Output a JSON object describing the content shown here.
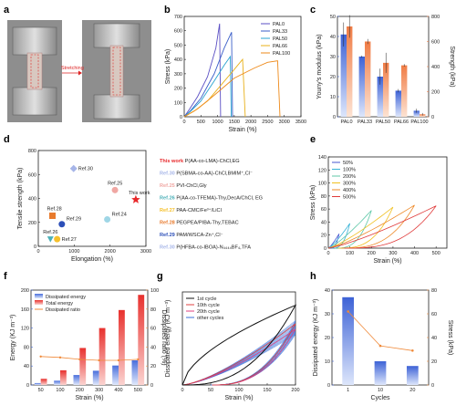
{
  "panel_labels": [
    "a",
    "b",
    "c",
    "d",
    "e",
    "f",
    "g",
    "h"
  ],
  "panel_a": {
    "arrow_label": "Stretching"
  },
  "chart_data": [
    {
      "panel": "b",
      "type": "line",
      "xlabel": "Strain (%)",
      "ylabel": "Stress (kPa)",
      "xlim": [
        0,
        3500
      ],
      "ylim": [
        0,
        700
      ],
      "xticks": [
        "0",
        "500",
        "1000",
        "1500",
        "2000",
        "2500",
        "3000",
        "3500"
      ],
      "yticks": [
        "0",
        "100",
        "200",
        "300",
        "400",
        "500",
        "600",
        "700"
      ],
      "legend_position": "top-right",
      "series": [
        {
          "name": "PAL0",
          "color": "#5b4fc4",
          "points": [
            [
              0,
              0
            ],
            [
              150,
              50
            ],
            [
              400,
              140
            ],
            [
              700,
              280
            ],
            [
              950,
              480
            ],
            [
              1060,
              650
            ],
            [
              1090,
              0
            ]
          ]
        },
        {
          "name": "PAL33",
          "color": "#3a5ec8",
          "points": [
            [
              0,
              0
            ],
            [
              200,
              45
            ],
            [
              500,
              130
            ],
            [
              900,
              300
            ],
            [
              1200,
              480
            ],
            [
              1420,
              590
            ],
            [
              1450,
              0
            ]
          ]
        },
        {
          "name": "PAL50",
          "color": "#27a3d0",
          "points": [
            [
              0,
              0
            ],
            [
              200,
              40
            ],
            [
              500,
              110
            ],
            [
              900,
              250
            ],
            [
              1200,
              360
            ],
            [
              1380,
              420
            ],
            [
              1410,
              0
            ]
          ]
        },
        {
          "name": "PAL66",
          "color": "#e8b01a",
          "points": [
            [
              0,
              0
            ],
            [
              300,
              40
            ],
            [
              700,
              110
            ],
            [
              1100,
              220
            ],
            [
              1500,
              330
            ],
            [
              1750,
              400
            ],
            [
              1830,
              0
            ]
          ]
        },
        {
          "name": "PAL100",
          "color": "#ee8a1a",
          "points": [
            [
              0,
              0
            ],
            [
              400,
              55
            ],
            [
              900,
              150
            ],
            [
              1500,
              270
            ],
            [
              2100,
              340
            ],
            [
              2500,
              380
            ],
            [
              2800,
              390
            ],
            [
              2870,
              0
            ]
          ]
        }
      ]
    },
    {
      "panel": "c",
      "type": "bar",
      "categories": [
        "PAL0",
        "PAL33",
        "PAL50",
        "PAL66",
        "PAL100"
      ],
      "ylabel_left": "Youny's modulus (kPa)",
      "ylim_left": [
        0,
        50
      ],
      "ylabel_right": "Strength (kPa)",
      "ylim_right": [
        0,
        800
      ],
      "yticks_left": [
        "0",
        "10",
        "20",
        "30",
        "40",
        "50"
      ],
      "yticks_right": [
        "0",
        "200",
        "400",
        "600",
        "800"
      ],
      "series": [
        {
          "name": "Young's modulus",
          "axis": "left",
          "color": "#3d62d6",
          "values": [
            41,
            30,
            20,
            13,
            3
          ],
          "errors": [
            6,
            0.5,
            4,
            0.8,
            1
          ]
        },
        {
          "name": "Strength",
          "axis": "right",
          "color": "#f07c45",
          "values": [
            720,
            600,
            430,
            410,
            20
          ],
          "errors": [
            90,
            20,
            80,
            10,
            10
          ]
        }
      ]
    },
    {
      "panel": "d",
      "type": "scatter",
      "xlabel": "Elongation (%)",
      "ylabel": "Tensile strength (kPa)",
      "xlim": [
        0,
        3200
      ],
      "ylim": [
        0,
        800
      ],
      "xticks": [
        "0",
        "1000",
        "2000",
        "3000"
      ],
      "yticks": [
        "0",
        "200",
        "400",
        "600",
        "800"
      ],
      "points": [
        {
          "label": "This work",
          "x": 2900,
          "y": 390,
          "color": "#e8292b",
          "marker": "star"
        },
        {
          "label": "Ref.30",
          "x": 1050,
          "y": 650,
          "color": "#a6b5e8",
          "marker": "diamond"
        },
        {
          "label": "Ref.25",
          "x": 2280,
          "y": 470,
          "color": "#f0a7a3",
          "marker": "circle"
        },
        {
          "label": "Ref.24",
          "x": 2050,
          "y": 225,
          "color": "#9fd6e6",
          "marker": "circle"
        },
        {
          "label": "Ref.28",
          "x": 420,
          "y": 255,
          "color": "#e87a2c",
          "marker": "square"
        },
        {
          "label": "Ref.29",
          "x": 700,
          "y": 185,
          "color": "#2c4fb8",
          "marker": "circle"
        },
        {
          "label": "Ref.26",
          "x": 360,
          "y": 60,
          "color": "#4cb0b8",
          "marker": "triangle"
        },
        {
          "label": "Ref.27",
          "x": 560,
          "y": 60,
          "color": "#f5c02c",
          "marker": "circle"
        }
      ]
    },
    {
      "panel": "e",
      "type": "line",
      "xlabel": "Strain (%)",
      "ylabel": "Stress (kPa)",
      "xlim": [
        0,
        550
      ],
      "ylim": [
        0,
        140
      ],
      "xticks": [
        "0",
        "100",
        "200",
        "300",
        "400",
        "500"
      ],
      "yticks": [
        "0",
        "20",
        "40",
        "60",
        "80",
        "100",
        "120",
        "140"
      ],
      "legend_position": "top-left",
      "series": [
        {
          "name": "50%",
          "strain_max": 50,
          "stress_peak": 22,
          "color": "#4455d0"
        },
        {
          "name": "100%",
          "strain_max": 100,
          "stress_peak": 38,
          "color": "#36b2d6"
        },
        {
          "name": "200%",
          "strain_max": 200,
          "stress_peak": 58,
          "color": "#60c8a8"
        },
        {
          "name": "300%",
          "strain_max": 300,
          "stress_peak": 63,
          "color": "#f0c020"
        },
        {
          "name": "400%",
          "strain_max": 400,
          "stress_peak": 66,
          "color": "#ee8a2a"
        },
        {
          "name": "500%",
          "strain_max": 500,
          "stress_peak": 65,
          "color": "#e03a3a"
        }
      ]
    },
    {
      "panel": "f",
      "type": "bar",
      "categories": [
        "50",
        "100",
        "200",
        "300",
        "400",
        "500"
      ],
      "xlabel": "Strain (%)",
      "ylabel_left": "Energy (KJ m⁻³)",
      "ylim_left": [
        0,
        200
      ],
      "ylabel_right": "Dissipated ratio (%)",
      "ylim_right": [
        0,
        100
      ],
      "yticks_left": [
        "0",
        "40",
        "80",
        "120",
        "160",
        "200"
      ],
      "yticks_right": [
        "0",
        "20",
        "40",
        "60",
        "80",
        "100"
      ],
      "legend_position": "top-left",
      "series": [
        {
          "name": "Dissipated energy",
          "axis": "left",
          "color": "#4a6fdc",
          "values": [
            4,
            9,
            21,
            30,
            41,
            52
          ]
        },
        {
          "name": "Total energy",
          "axis": "left",
          "color": "#e8312e",
          "values": [
            13,
            31,
            78,
            120,
            158,
            190
          ]
        },
        {
          "name": "Dissipated ratio",
          "axis": "right",
          "color": "#f08a3a",
          "values": [
            30,
            29,
            27,
            26,
            26,
            27
          ]
        }
      ]
    },
    {
      "panel": "g",
      "type": "line",
      "xlabel": "Strain (%)",
      "ylabel": "Dissipated energy (KJ m⁻³)",
      "xlim": [
        0,
        200
      ],
      "ylim": [
        0,
        70
      ],
      "xticks": [
        "0",
        "50",
        "100",
        "150",
        "200"
      ],
      "legend_position": "top-left",
      "series": [
        {
          "name": "1st cycle",
          "color": "#111111",
          "stress_peak": 60
        },
        {
          "name": "10th cycle",
          "color": "#e04040",
          "stress_peak": 46
        },
        {
          "name": "20th cycle",
          "color": "#e04080",
          "stress_peak": 42
        },
        {
          "name": "other cycles",
          "color": "#3a6fd8",
          "stress_peak": 45
        }
      ]
    },
    {
      "panel": "h",
      "type": "bar",
      "categories": [
        "1",
        "10",
        "20"
      ],
      "xlabel": "Cycles",
      "ylabel_left": "Dissipated energy (KJ m⁻³)",
      "ylim_left": [
        0,
        40
      ],
      "ylabel_right": "Stress (kPa)",
      "ylim_right": [
        0,
        80
      ],
      "yticks_left": [
        "0",
        "10",
        "20",
        "30",
        "40"
      ],
      "yticks_right": [
        "0",
        "20",
        "40",
        "60",
        "80"
      ],
      "series": [
        {
          "name": "Dissipated energy",
          "axis": "left",
          "color": "#3d62d6",
          "values": [
            37,
            10,
            8
          ]
        },
        {
          "name": "Stress",
          "axis": "right",
          "color": "#f08a3a",
          "values": [
            62,
            33,
            29
          ]
        }
      ]
    }
  ],
  "references": [
    {
      "key": "This work",
      "rest": "P(AA-co-LMA)-ChCl,EG",
      "color": "#e8292b"
    },
    {
      "key": "Ref.30",
      "rest": "P(SBMA-co-AA)-ChCl,BMIM⁺,Cl⁻",
      "color": "#a6b5e8"
    },
    {
      "key": "Ref.25",
      "rest": "PVI-ChCl,Gly",
      "color": "#f0a7a3"
    },
    {
      "key": "Ref.26",
      "rest": "P(AA-co-TFEMA)-Thy,DecA/ChCl, EG",
      "color": "#4cb0b8"
    },
    {
      "key": "Ref.27",
      "rest": "PAA-CMC/Fe³⁺/LiCl",
      "color": "#f5c02c"
    },
    {
      "key": "Ref.28",
      "rest": "PEGPEA/PIBA-Thy,TEBAC",
      "color": "#e87a2c"
    },
    {
      "key": "Ref.29",
      "rest": "PAM/WSCA-Zn⁺,Cl⁻",
      "color": "#2c4fb8"
    },
    {
      "key": "Ref.30",
      "rest": "P(HFBA-co-IBOA)-N₄₄₄₄BF₄,TFA",
      "color": "#a6b5e8"
    }
  ]
}
